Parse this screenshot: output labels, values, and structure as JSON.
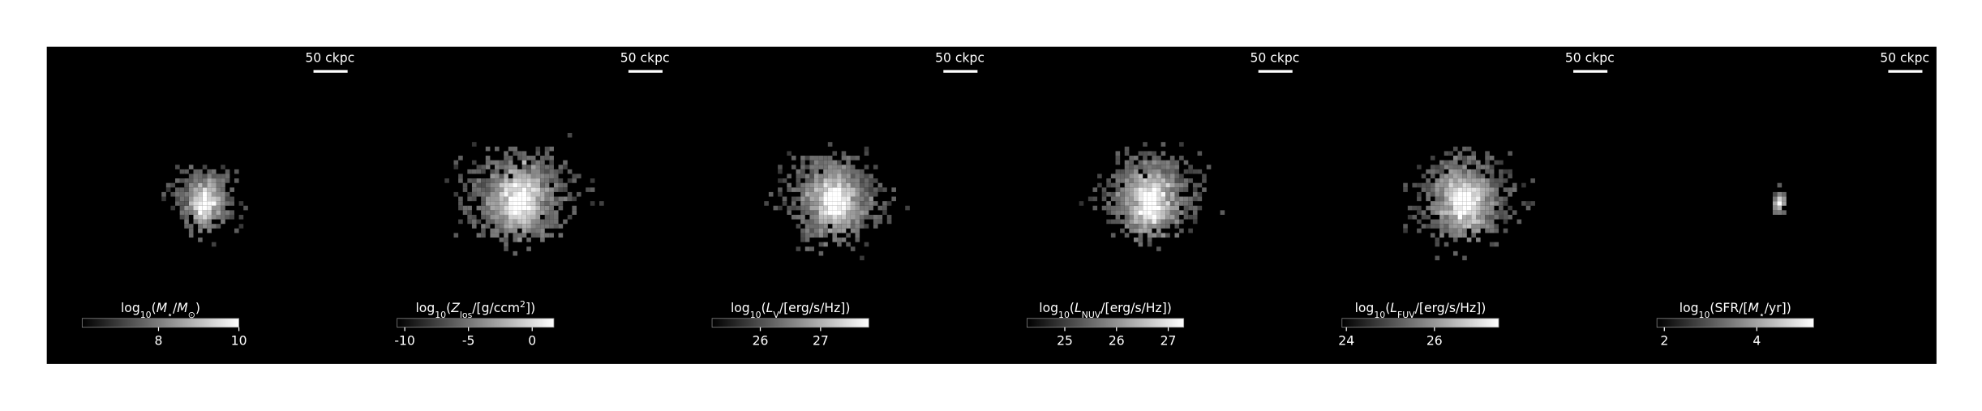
{
  "panels": [
    {
      "scale_label": "50 ckpc",
      "spread": [
        7,
        11
      ],
      "colorbar": {
        "label": [
          {
            "text": "log"
          },
          {
            "text": "10",
            "style": "sub"
          },
          {
            "text": "("
          },
          {
            "text": "M",
            "style": "italic"
          },
          {
            "text": "⋆",
            "style": "sub"
          },
          {
            "text": "/"
          },
          {
            "text": "M",
            "style": "italic"
          },
          {
            "text": "⊙",
            "style": "sub"
          },
          {
            "text": ")"
          }
        ],
        "lim": [
          6.1,
          10
        ],
        "ticks": [
          8,
          10
        ]
      }
    },
    {
      "scale_label": "50 ckpc",
      "spread": [
        12,
        16
      ],
      "colorbar": {
        "label": [
          {
            "text": "log"
          },
          {
            "text": "10",
            "style": "sub"
          },
          {
            "text": "("
          },
          {
            "text": "Z",
            "style": "italic"
          },
          {
            "text": "los",
            "style": "sub"
          },
          {
            "text": "/[g/ccm"
          },
          {
            "text": "2",
            "style": "sup"
          },
          {
            "text": "])"
          }
        ],
        "lim": [
          -10.6,
          1.7
        ],
        "ticks": [
          -10,
          -5,
          0
        ]
      }
    },
    {
      "scale_label": "50 ckpc",
      "spread": [
        11,
        15
      ],
      "colorbar": {
        "label": [
          {
            "text": "log"
          },
          {
            "text": "10",
            "style": "sub"
          },
          {
            "text": "("
          },
          {
            "text": "L",
            "style": "italic"
          },
          {
            "text": "V",
            "style": "sub"
          },
          {
            "text": "/[erg/s/Hz])"
          }
        ],
        "lim": [
          25.2,
          27.8
        ],
        "ticks": [
          26,
          27
        ]
      }
    },
    {
      "scale_label": "50 ckpc",
      "spread": [
        11,
        15
      ],
      "colorbar": {
        "label": [
          {
            "text": "log"
          },
          {
            "text": "10",
            "style": "sub"
          },
          {
            "text": "("
          },
          {
            "text": "L",
            "style": "italic"
          },
          {
            "text": "NUV",
            "style": "sub"
          },
          {
            "text": "/[erg/s/Hz])"
          }
        ],
        "lim": [
          24.27,
          27.3
        ],
        "ticks": [
          25,
          26,
          27
        ]
      }
    },
    {
      "scale_label": "50 ckpc",
      "spread": [
        11,
        15
      ],
      "colorbar": {
        "label": [
          {
            "text": "log"
          },
          {
            "text": "10",
            "style": "sub"
          },
          {
            "text": "("
          },
          {
            "text": "L",
            "style": "italic"
          },
          {
            "text": "FUV",
            "style": "sub"
          },
          {
            "text": "/[erg/s/Hz])"
          }
        ],
        "lim": [
          23.9,
          27.46
        ],
        "ticks": [
          24,
          26
        ]
      }
    },
    {
      "scale_label": "50 ckpc",
      "spread": [
        2,
        4
      ],
      "colorbar": {
        "label": [
          {
            "text": "log"
          },
          {
            "text": "10",
            "style": "sub"
          },
          {
            "text": "(SFR/["
          },
          {
            "text": "M",
            "style": "italic"
          },
          {
            "text": "⋆",
            "style": "sub"
          },
          {
            "text": "/yr])"
          }
        ],
        "lim": [
          1.84,
          5.23
        ],
        "ticks": [
          2,
          4
        ]
      }
    }
  ]
}
